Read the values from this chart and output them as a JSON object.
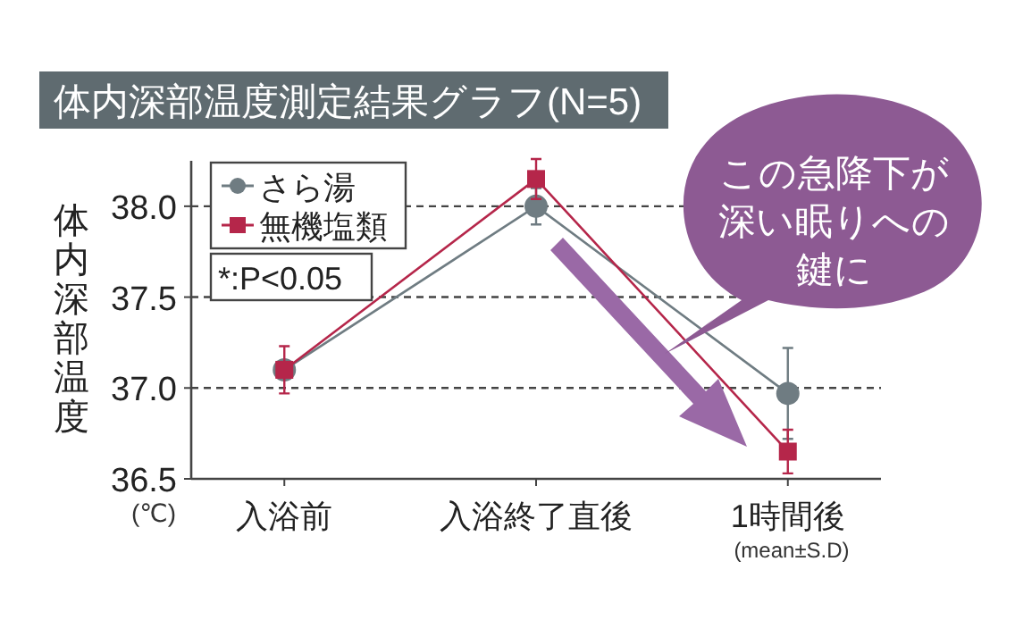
{
  "chart_data": {
    "type": "line",
    "title": "体内深部温度測定結果グラフ(N=5)",
    "ylabel": "体内深部温度",
    "categories": [
      "入浴前",
      "入浴終了直後",
      "1時間後"
    ],
    "series": [
      {
        "name": "さら湯",
        "color": "#6f7c82",
        "marker": "circle",
        "values": [
          37.1,
          38.0,
          36.97
        ],
        "errors": [
          null,
          0.1,
          0.25
        ]
      },
      {
        "name": "無機塩類",
        "color": "#b5264a",
        "marker": "square",
        "values": [
          37.1,
          38.15,
          36.65
        ],
        "errors": [
          0.13,
          0.11,
          0.12
        ]
      }
    ],
    "ylim": [
      36.5,
      38.25
    ],
    "yticks": [
      36.5,
      {
        "value": 37,
        "label": "37.0"
      },
      37.5,
      {
        "value": 38,
        "label": "38.0"
      }
    ],
    "grid": "y",
    "legend": "top left",
    "line_style": "solid",
    "annotations": [
      "(℃)",
      "*:P<0.05",
      "この急降下が深い眠りへの鍵に",
      "(mean±S.D)"
    ]
  }
}
